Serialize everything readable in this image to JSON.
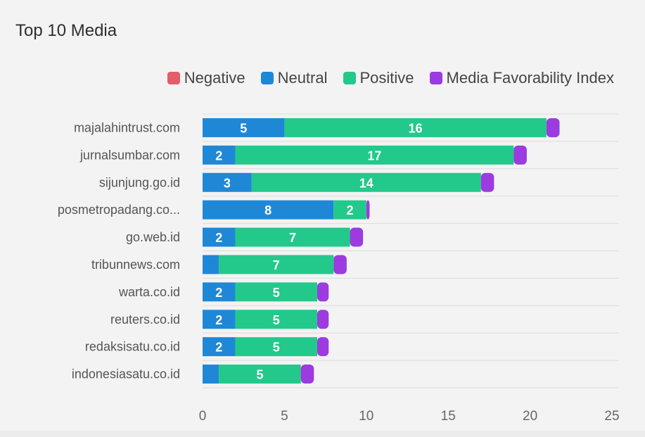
{
  "title": "Top 10 Media",
  "chart_data": {
    "type": "bar",
    "orientation": "horizontal",
    "stacked": true,
    "title": "Top 10 Media",
    "categories": [
      "majalahintrust.com",
      "jurnalsumbar.com",
      "sijunjung.go.id",
      "posmetropadang.co...",
      "go.web.id",
      "tribunnews.com",
      "warta.co.id",
      "reuters.co.id",
      "redaksisatu.co.id",
      "indonesiasatu.co.id"
    ],
    "series": [
      {
        "name": "Negative",
        "color": "#e35d6a",
        "values": [
          0,
          0,
          0,
          0,
          0,
          0,
          0,
          0,
          0,
          0
        ]
      },
      {
        "name": "Neutral",
        "color": "#1e88d6",
        "values": [
          5,
          2,
          3,
          8,
          2,
          1,
          2,
          2,
          2,
          1
        ]
      },
      {
        "name": "Positive",
        "color": "#22c98a",
        "values": [
          16,
          17,
          14,
          2,
          7,
          7,
          5,
          5,
          5,
          5
        ]
      },
      {
        "name": "Media Favorability Index",
        "color": "#9b3be0",
        "values": [
          0.8,
          0.8,
          0.8,
          0.2,
          0.8,
          0.8,
          0.7,
          0.7,
          0.7,
          0.8
        ]
      }
    ],
    "data_labels": {
      "Neutral": [
        "5",
        "2",
        "3",
        "8",
        "2",
        "",
        "2",
        "2",
        "2",
        ""
      ],
      "Positive": [
        "16",
        "17",
        "14",
        "2",
        "7",
        "7",
        "5",
        "5",
        "5",
        "5"
      ]
    },
    "xlim": [
      0,
      25
    ],
    "xticks": [
      "0",
      "5",
      "10",
      "15",
      "20",
      "25"
    ],
    "grid": true,
    "legend_position": "top-right"
  }
}
